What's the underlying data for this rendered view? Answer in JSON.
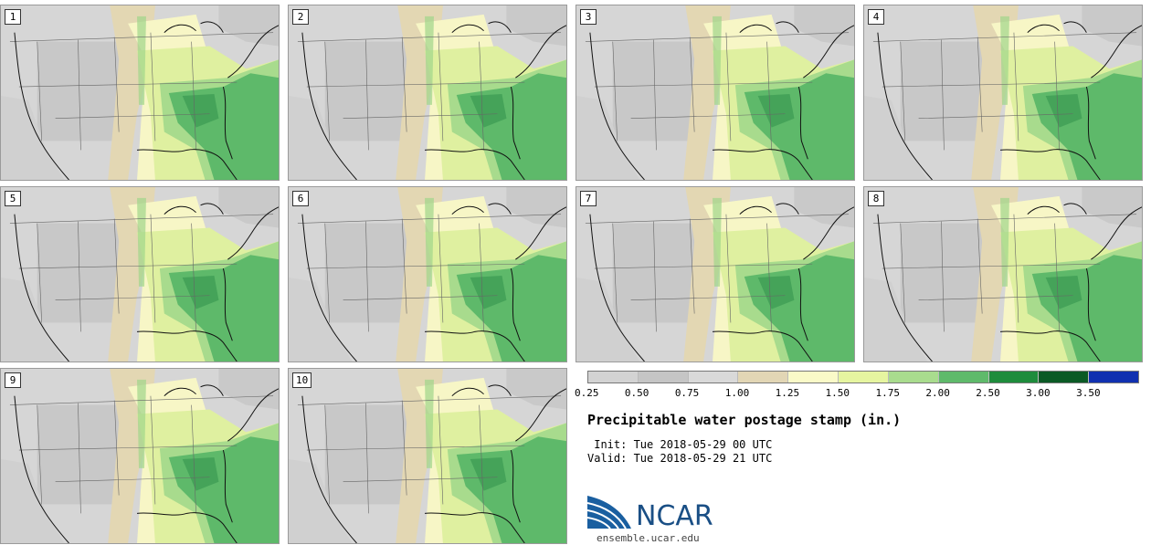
{
  "stamps": [
    "1",
    "2",
    "3",
    "4",
    "5",
    "6",
    "7",
    "8",
    "9",
    "10"
  ],
  "colorbar": {
    "colors": [
      "#d3d3d3",
      "#c5c5c5",
      "#d9d9d9",
      "#e2d6b5",
      "#fafac8",
      "#e6f5a0",
      "#a9dc8e",
      "#5fba6b",
      "#1e8c3c",
      "#0b5a25",
      "#1030b0"
    ],
    "ticks": [
      "0.25",
      "0.50",
      "0.75",
      "1.00",
      "1.25",
      "1.50",
      "1.75",
      "2.00",
      "2.50",
      "3.00",
      "3.50"
    ]
  },
  "title": "Precipitable water postage stamp (in.)",
  "init": " Init: Tue 2018-05-29 00 UTC",
  "valid": "Valid: Tue 2018-05-29 21 UTC",
  "logo": {
    "name": "NCAR",
    "url": "ensemble.ucar.edu"
  }
}
